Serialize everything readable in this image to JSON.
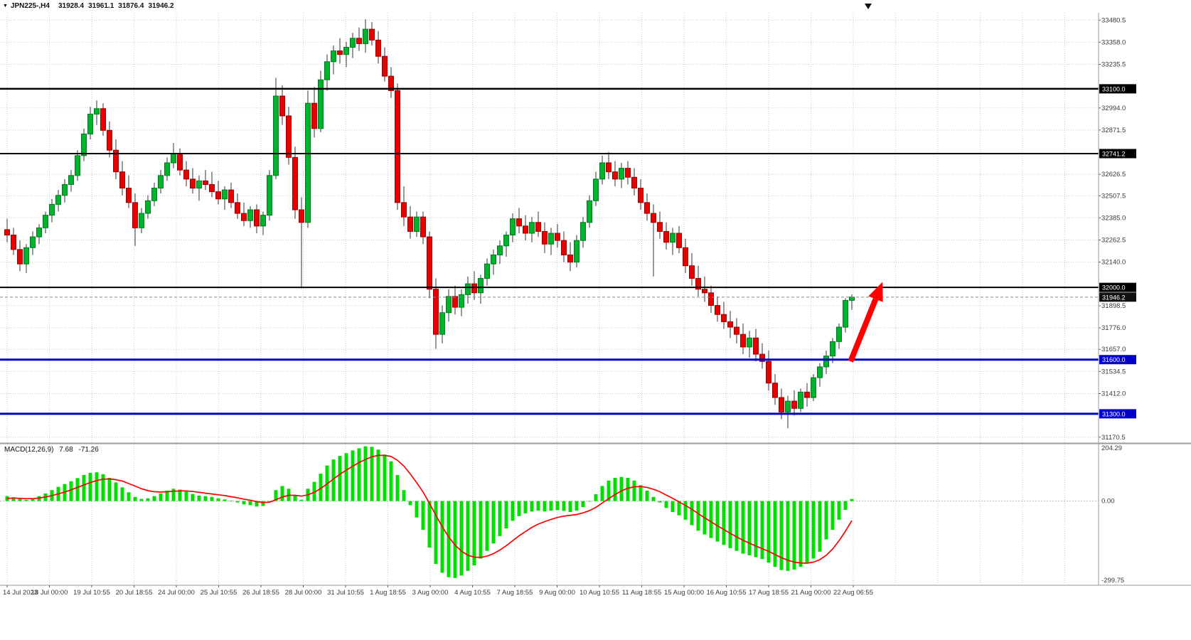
{
  "title_bar": {
    "dropdown_icon": "▼",
    "symbol_period": "JPN225-,H4",
    "open": "31928.4",
    "high": "31961.1",
    "low": "31876.4",
    "close": "31946.2"
  },
  "macd_label": {
    "name": "MACD(12,26,9)",
    "main": "7.68",
    "signal": "-71.26"
  },
  "colors": {
    "background": "#FFFFFF",
    "grid": "#C9C9C9",
    "bull": "#00B32C",
    "bull_border": "#007A1E",
    "bear": "#E60000",
    "bear_border": "#990000",
    "wick": "#333333",
    "macd_hist": "#00DE00",
    "macd_signal": "#FF0000",
    "axis_text": "#3A3A3A",
    "separator": "#9A9A9A",
    "arrow": "#FF0000"
  },
  "chart_data": {
    "type": "candlestick",
    "title": "JPN225-,H4",
    "price_axis": {
      "min": 31142,
      "max": 33521,
      "ticks": [
        33480.5,
        33358.0,
        33235.5,
        32994.0,
        32871.5,
        32626.5,
        32507.5,
        32385.0,
        32262.5,
        32140.0,
        31898.5,
        31776.0,
        31657.0,
        31534.5,
        31412.0,
        31170.5
      ]
    },
    "x_labels": [
      "14 Jul 2023",
      "18 Jul 00:00",
      "19 Jul 10:55",
      "20 Jul 18:55",
      "24 Jul 00:00",
      "25 Jul 10:55",
      "26 Jul 18:55",
      "28 Jul 00:00",
      "31 Jul 10:55",
      "1 Aug 18:55",
      "3 Aug 00:00",
      "4 Aug 10:55",
      "7 Aug 18:55",
      "9 Aug 00:00",
      "10 Aug 10:55",
      "11 Aug 18:55",
      "15 Aug 00:00",
      "16 Aug 10:55",
      "17 Aug 18:55",
      "21 Aug 00:00",
      "22 Aug 06:55"
    ],
    "hlines": [
      {
        "price": 33100.0,
        "label": "33100.0",
        "color": "#000000",
        "width": 2.5
      },
      {
        "price": 32741.2,
        "label": "32741.2",
        "color": "#000000",
        "width": 2
      },
      {
        "price": 32000.0,
        "label": "32000.0",
        "color": "#000000",
        "width": 2
      },
      {
        "price": 31600.0,
        "label": "31600.0",
        "color": "#0000C8",
        "width": 3
      },
      {
        "price": 31300.0,
        "label": "31300.0",
        "color": "#0000C8",
        "width": 3
      }
    ],
    "bid": {
      "price": 31946.2,
      "label": "31946.2",
      "color": "#111111"
    },
    "arrow": {
      "from_index": 131.8,
      "from_price": 31590,
      "to_index": 136.8,
      "to_price": 32030
    },
    "candles": [
      [
        32320,
        32380,
        32250,
        32290
      ],
      [
        32290,
        32330,
        32180,
        32210
      ],
      [
        32210,
        32260,
        32090,
        32130
      ],
      [
        32130,
        32240,
        32080,
        32220
      ],
      [
        32220,
        32310,
        32180,
        32280
      ],
      [
        32280,
        32350,
        32240,
        32330
      ],
      [
        32330,
        32420,
        32300,
        32400
      ],
      [
        32400,
        32490,
        32360,
        32460
      ],
      [
        32460,
        32540,
        32420,
        32510
      ],
      [
        32510,
        32600,
        32470,
        32570
      ],
      [
        32570,
        32650,
        32530,
        32620
      ],
      [
        32620,
        32760,
        32590,
        32730
      ],
      [
        32730,
        32880,
        32700,
        32850
      ],
      [
        32850,
        33000,
        32820,
        32960
      ],
      [
        32960,
        33035,
        32900,
        32990
      ],
      [
        32990,
        33020,
        32840,
        32870
      ],
      [
        32870,
        32920,
        32720,
        32760
      ],
      [
        32760,
        32820,
        32600,
        32640
      ],
      [
        32640,
        32700,
        32510,
        32550
      ],
      [
        32550,
        32620,
        32440,
        32470
      ],
      [
        32470,
        32520,
        32230,
        32330
      ],
      [
        32330,
        32440,
        32300,
        32410
      ],
      [
        32410,
        32510,
        32380,
        32480
      ],
      [
        32480,
        32580,
        32450,
        32550
      ],
      [
        32550,
        32650,
        32520,
        32620
      ],
      [
        32620,
        32720,
        32590,
        32690
      ],
      [
        32690,
        32800,
        32660,
        32740
      ],
      [
        32740,
        32770,
        32620,
        32650
      ],
      [
        32650,
        32700,
        32560,
        32600
      ],
      [
        32600,
        32660,
        32520,
        32550
      ],
      [
        32550,
        32620,
        32480,
        32590
      ],
      [
        32590,
        32650,
        32540,
        32570
      ],
      [
        32570,
        32640,
        32500,
        32530
      ],
      [
        32530,
        32590,
        32460,
        32490
      ],
      [
        32490,
        32560,
        32430,
        32540
      ],
      [
        32540,
        32580,
        32440,
        32470
      ],
      [
        32470,
        32520,
        32380,
        32410
      ],
      [
        32410,
        32470,
        32340,
        32370
      ],
      [
        32370,
        32450,
        32330,
        32430
      ],
      [
        32430,
        32460,
        32300,
        32340
      ],
      [
        32340,
        32420,
        32290,
        32400
      ],
      [
        32400,
        32650,
        32370,
        32620
      ],
      [
        32620,
        33160,
        32600,
        33060
      ],
      [
        33060,
        33120,
        32900,
        32950
      ],
      [
        32950,
        33000,
        32680,
        32720
      ],
      [
        32720,
        32780,
        32380,
        32430
      ],
      [
        32430,
        32500,
        31995,
        32360
      ],
      [
        32360,
        33090,
        32330,
        33020
      ],
      [
        33020,
        33110,
        32830,
        32880
      ],
      [
        32880,
        33200,
        32860,
        33150
      ],
      [
        33150,
        33290,
        33090,
        33250
      ],
      [
        33250,
        33340,
        33180,
        33310
      ],
      [
        33310,
        33380,
        33240,
        33290
      ],
      [
        33290,
        33360,
        33220,
        33330
      ],
      [
        33330,
        33410,
        33270,
        33380
      ],
      [
        33380,
        33440,
        33310,
        33350
      ],
      [
        33350,
        33485,
        33300,
        33430
      ],
      [
        33430,
        33470,
        33340,
        33370
      ],
      [
        33370,
        33420,
        33240,
        33280
      ],
      [
        33280,
        33330,
        33140,
        33170
      ],
      [
        33170,
        33220,
        33050,
        33090
      ],
      [
        33090,
        33130,
        32430,
        32470
      ],
      [
        32470,
        32560,
        32340,
        32390
      ],
      [
        32390,
        32450,
        32270,
        32310
      ],
      [
        32310,
        32420,
        32280,
        32390
      ],
      [
        32390,
        32420,
        32240,
        32280
      ],
      [
        32280,
        32310,
        31940,
        31990
      ],
      [
        31990,
        32050,
        31660,
        31740
      ],
      [
        31740,
        31900,
        31690,
        31860
      ],
      [
        31860,
        31990,
        31810,
        31950
      ],
      [
        31950,
        32010,
        31850,
        31890
      ],
      [
        31890,
        31990,
        31840,
        31960
      ],
      [
        31960,
        32060,
        31910,
        32020
      ],
      [
        32020,
        32090,
        31930,
        31970
      ],
      [
        31970,
        32070,
        31910,
        32050
      ],
      [
        32050,
        32160,
        32010,
        32130
      ],
      [
        32130,
        32210,
        32070,
        32180
      ],
      [
        32180,
        32260,
        32130,
        32230
      ],
      [
        32230,
        32310,
        32170,
        32290
      ],
      [
        32290,
        32410,
        32250,
        32380
      ],
      [
        32380,
        32440,
        32300,
        32340
      ],
      [
        32340,
        32400,
        32260,
        32300
      ],
      [
        32300,
        32390,
        32250,
        32360
      ],
      [
        32360,
        32420,
        32280,
        32310
      ],
      [
        32310,
        32360,
        32190,
        32240
      ],
      [
        32240,
        32330,
        32180,
        32300
      ],
      [
        32300,
        32350,
        32220,
        32260
      ],
      [
        32260,
        32310,
        32140,
        32180
      ],
      [
        32180,
        32250,
        32090,
        32140
      ],
      [
        32140,
        32290,
        32110,
        32260
      ],
      [
        32260,
        32390,
        32220,
        32360
      ],
      [
        32360,
        32510,
        32330,
        32480
      ],
      [
        32480,
        32640,
        32450,
        32600
      ],
      [
        32600,
        32730,
        32570,
        32690
      ],
      [
        32690,
        32750,
        32600,
        32640
      ],
      [
        32640,
        32700,
        32560,
        32600
      ],
      [
        32600,
        32690,
        32550,
        32660
      ],
      [
        32660,
        32700,
        32570,
        32610
      ],
      [
        32610,
        32660,
        32510,
        32550
      ],
      [
        32550,
        32600,
        32430,
        32470
      ],
      [
        32470,
        32520,
        32370,
        32410
      ],
      [
        32410,
        32460,
        32060,
        32360
      ],
      [
        32360,
        32420,
        32270,
        32310
      ],
      [
        32310,
        32360,
        32210,
        32250
      ],
      [
        32250,
        32330,
        32180,
        32300
      ],
      [
        32300,
        32340,
        32190,
        32220
      ],
      [
        32220,
        32270,
        32080,
        32120
      ],
      [
        32120,
        32190,
        32010,
        32050
      ],
      [
        32050,
        32120,
        31950,
        31990
      ],
      [
        31990,
        32060,
        31920,
        31970
      ],
      [
        31970,
        32010,
        31860,
        31900
      ],
      [
        31900,
        31950,
        31810,
        31850
      ],
      [
        31850,
        31920,
        31770,
        31810
      ],
      [
        31810,
        31870,
        31720,
        31780
      ],
      [
        31780,
        31830,
        31690,
        31740
      ],
      [
        31740,
        31800,
        31630,
        31670
      ],
      [
        31670,
        31760,
        31610,
        31720
      ],
      [
        31720,
        31770,
        31590,
        31630
      ],
      [
        31630,
        31690,
        31550,
        31590
      ],
      [
        31590,
        31650,
        31430,
        31470
      ],
      [
        31470,
        31520,
        31350,
        31390
      ],
      [
        31390,
        31440,
        31270,
        31310
      ],
      [
        31310,
        31400,
        31220,
        31370
      ],
      [
        31370,
        31430,
        31290,
        31330
      ],
      [
        31330,
        31440,
        31310,
        31420
      ],
      [
        31420,
        31470,
        31340,
        31390
      ],
      [
        31390,
        31520,
        31370,
        31500
      ],
      [
        31500,
        31580,
        31450,
        31560
      ],
      [
        31560,
        31650,
        31520,
        31620
      ],
      [
        31620,
        31720,
        31580,
        31700
      ],
      [
        31700,
        31800,
        31660,
        31780
      ],
      [
        31780,
        31940,
        31750,
        31928
      ],
      [
        31928.4,
        31961.1,
        31876.4,
        31946.2
      ]
    ],
    "macd": {
      "params": "12,26,9",
      "main_value": 7.68,
      "signal_value": -71.26,
      "min": -299.75,
      "max": 204.29,
      "axis_ticks": [
        "204.29",
        "0.00",
        "-299.75"
      ],
      "hist": [
        18,
        14,
        8,
        5,
        10,
        18,
        28,
        40,
        52,
        62,
        72,
        84,
        95,
        103,
        105,
        98,
        85,
        68,
        50,
        32,
        15,
        8,
        10,
        18,
        28,
        38,
        45,
        42,
        35,
        26,
        20,
        18,
        15,
        10,
        6,
        2,
        -5,
        -12,
        -15,
        -20,
        -18,
        0,
        40,
        55,
        45,
        20,
        5,
        45,
        70,
        100,
        130,
        152,
        165,
        175,
        185,
        193,
        200,
        198,
        188,
        170,
        145,
        95,
        40,
        -15,
        -60,
        -105,
        -170,
        -230,
        -262,
        -278,
        -281,
        -272,
        -255,
        -235,
        -210,
        -182,
        -155,
        -128,
        -100,
        -72,
        -55,
        -45,
        -38,
        -35,
        -38,
        -35,
        -33,
        -36,
        -40,
        -35,
        -22,
        -2,
        25,
        55,
        75,
        85,
        88,
        85,
        75,
        58,
        38,
        15,
        -5,
        -25,
        -40,
        -52,
        -68,
        -88,
        -108,
        -122,
        -135,
        -148,
        -160,
        -172,
        -182,
        -192,
        -198,
        -205,
        -212,
        -225,
        -240,
        -252,
        -255,
        -250,
        -240,
        -228,
        -210,
        -185,
        -140,
        -105,
        -68,
        -32,
        7.68
      ],
      "signal": [
        10,
        11,
        10,
        9,
        9,
        11,
        15,
        20,
        26,
        33,
        41,
        50,
        59,
        68,
        75,
        80,
        81,
        78,
        73,
        64,
        55,
        45,
        38,
        34,
        33,
        34,
        36,
        37,
        37,
        35,
        32,
        29,
        26,
        23,
        20,
        16,
        12,
        7,
        3,
        -2,
        -5,
        -4,
        5,
        15,
        21,
        21,
        18,
        23,
        32,
        46,
        63,
        81,
        98,
        113,
        127,
        141,
        152,
        162,
        167,
        167,
        163,
        149,
        128,
        99,
        67,
        33,
        -8,
        -52,
        -94,
        -131,
        -161,
        -183,
        -198,
        -205,
        -206,
        -201,
        -192,
        -179,
        -163,
        -145,
        -127,
        -111,
        -96,
        -84,
        -75,
        -67,
        -60,
        -55,
        -52,
        -49,
        -43,
        -35,
        -23,
        -7,
        9,
        24,
        37,
        47,
        52,
        53,
        50,
        43,
        34,
        22,
        10,
        -3,
        -16,
        -30,
        -46,
        -61,
        -76,
        -90,
        -104,
        -118,
        -131,
        -143,
        -154,
        -164,
        -174,
        -184,
        -195,
        -207,
        -216,
        -223,
        -226,
        -227,
        -223,
        -214,
        -198,
        -175,
        -145,
        -110,
        -71.26
      ]
    }
  }
}
